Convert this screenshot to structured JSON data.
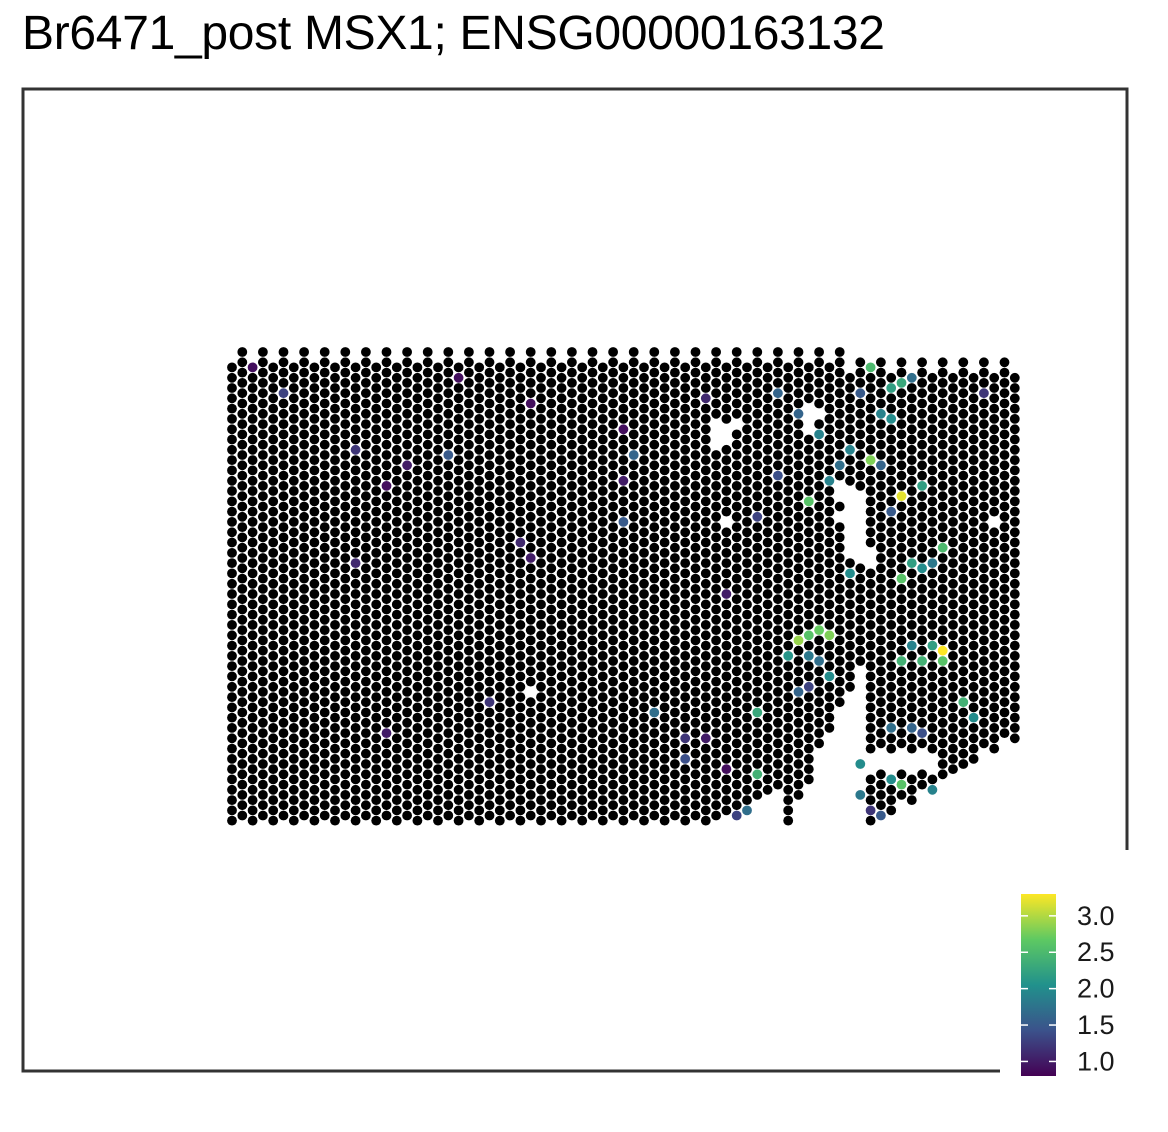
{
  "chart_data": {
    "type": "scatter",
    "title": "Br6471_post MSX1; ENSG00000163132",
    "background_spot_color": "#000000",
    "colorbar": {
      "palette": "viridis",
      "colors": [
        "#440154",
        "#3B528B",
        "#21918C",
        "#5EC962",
        "#FDE725"
      ],
      "min": 0.8,
      "max": 3.3,
      "ticks": [
        1.0,
        1.5,
        2.0,
        2.5,
        3.0
      ],
      "tick_labels": [
        "1.0",
        "1.5",
        "2.0",
        "2.5",
        "3.0"
      ]
    },
    "grid": {
      "columns": 77,
      "rows": 46,
      "layout": "hexagonal (odd columns offset by half a row)"
    },
    "holes": [
      [
        47,
        7
      ],
      [
        48,
        7
      ],
      [
        49,
        7
      ],
      [
        47,
        8
      ],
      [
        48,
        8
      ],
      [
        47,
        9
      ],
      [
        56,
        5
      ],
      [
        56,
        6
      ],
      [
        56,
        7
      ],
      [
        57,
        6
      ],
      [
        59,
        13
      ],
      [
        60,
        13
      ],
      [
        59,
        14
      ],
      [
        60,
        14
      ],
      [
        61,
        14
      ],
      [
        60,
        15
      ],
      [
        61,
        15
      ],
      [
        59,
        16
      ],
      [
        60,
        16
      ],
      [
        61,
        16
      ],
      [
        60,
        17
      ],
      [
        61,
        17
      ],
      [
        60,
        18
      ],
      [
        61,
        18
      ],
      [
        60,
        19
      ],
      [
        61,
        19
      ],
      [
        62,
        19
      ],
      [
        61,
        20
      ],
      [
        62,
        20
      ],
      [
        74,
        16
      ],
      [
        29,
        33
      ],
      [
        48,
        16
      ]
    ],
    "values": [
      {
        "x": 2,
        "y": 1,
        "v": 0.9
      },
      {
        "x": 5,
        "y": 4,
        "v": 1.3
      },
      {
        "x": 22,
        "y": 2,
        "v": 0.9
      },
      {
        "x": 29,
        "y": 5,
        "v": 0.9
      },
      {
        "x": 12,
        "y": 9,
        "v": 1.2
      },
      {
        "x": 17,
        "y": 11,
        "v": 1.0
      },
      {
        "x": 15,
        "y": 13,
        "v": 0.9
      },
      {
        "x": 21,
        "y": 10,
        "v": 1.5
      },
      {
        "x": 38,
        "y": 7,
        "v": 0.9
      },
      {
        "x": 46,
        "y": 4,
        "v": 1.1
      },
      {
        "x": 39,
        "y": 10,
        "v": 1.6
      },
      {
        "x": 38,
        "y": 12,
        "v": 1.0
      },
      {
        "x": 28,
        "y": 18,
        "v": 1.1
      },
      {
        "x": 29,
        "y": 20,
        "v": 1.0
      },
      {
        "x": 12,
        "y": 20,
        "v": 1.1
      },
      {
        "x": 38,
        "y": 16,
        "v": 1.5
      },
      {
        "x": 53,
        "y": 4,
        "v": 1.6
      },
      {
        "x": 55,
        "y": 6,
        "v": 1.6
      },
      {
        "x": 53,
        "y": 12,
        "v": 1.4
      },
      {
        "x": 51,
        "y": 16,
        "v": 1.3
      },
      {
        "x": 57,
        "y": 8,
        "v": 1.9
      },
      {
        "x": 56,
        "y": 14,
        "v": 2.6
      },
      {
        "x": 60,
        "y": 9,
        "v": 1.9
      },
      {
        "x": 61,
        "y": 4,
        "v": 1.5
      },
      {
        "x": 62,
        "y": 1,
        "v": 2.5
      },
      {
        "x": 62,
        "y": 10,
        "v": 2.8
      },
      {
        "x": 59,
        "y": 11,
        "v": 1.7
      },
      {
        "x": 63,
        "y": 6,
        "v": 1.9
      },
      {
        "x": 64,
        "y": 3,
        "v": 2.2
      },
      {
        "x": 65,
        "y": 3,
        "v": 2.3
      },
      {
        "x": 64,
        "y": 6,
        "v": 2.0
      },
      {
        "x": 63,
        "y": 11,
        "v": 1.6
      },
      {
        "x": 65,
        "y": 14,
        "v": 3.2
      },
      {
        "x": 67,
        "y": 13,
        "v": 2.2
      },
      {
        "x": 64,
        "y": 15,
        "v": 1.5
      },
      {
        "x": 66,
        "y": 2,
        "v": 1.7
      },
      {
        "x": 73,
        "y": 4,
        "v": 1.2
      },
      {
        "x": 58,
        "y": 12,
        "v": 1.9
      },
      {
        "x": 60,
        "y": 21,
        "v": 2.0
      },
      {
        "x": 48,
        "y": 23,
        "v": 1.0
      },
      {
        "x": 66,
        "y": 20,
        "v": 2.2
      },
      {
        "x": 67,
        "y": 21,
        "v": 2.0
      },
      {
        "x": 68,
        "y": 20,
        "v": 1.8
      },
      {
        "x": 69,
        "y": 19,
        "v": 2.5
      },
      {
        "x": 65,
        "y": 22,
        "v": 2.6
      },
      {
        "x": 56,
        "y": 27,
        "v": 2.6
      },
      {
        "x": 57,
        "y": 27,
        "v": 2.7
      },
      {
        "x": 58,
        "y": 27,
        "v": 2.8
      },
      {
        "x": 55,
        "y": 28,
        "v": 2.9
      },
      {
        "x": 54,
        "y": 29,
        "v": 2.1
      },
      {
        "x": 56,
        "y": 29,
        "v": 1.8
      },
      {
        "x": 57,
        "y": 30,
        "v": 1.7
      },
      {
        "x": 58,
        "y": 31,
        "v": 2.0
      },
      {
        "x": 56,
        "y": 32,
        "v": 1.3
      },
      {
        "x": 55,
        "y": 33,
        "v": 1.6
      },
      {
        "x": 66,
        "y": 28,
        "v": 1.9
      },
      {
        "x": 68,
        "y": 28,
        "v": 2.2
      },
      {
        "x": 69,
        "y": 29,
        "v": 3.3
      },
      {
        "x": 65,
        "y": 30,
        "v": 2.4
      },
      {
        "x": 67,
        "y": 30,
        "v": 2.4
      },
      {
        "x": 69,
        "y": 30,
        "v": 2.6
      },
      {
        "x": 71,
        "y": 34,
        "v": 2.4
      },
      {
        "x": 72,
        "y": 35,
        "v": 2.0
      },
      {
        "x": 64,
        "y": 36,
        "v": 1.7
      },
      {
        "x": 66,
        "y": 36,
        "v": 1.6
      },
      {
        "x": 67,
        "y": 37,
        "v": 1.4
      },
      {
        "x": 51,
        "y": 35,
        "v": 2.3
      },
      {
        "x": 41,
        "y": 35,
        "v": 1.7
      },
      {
        "x": 44,
        "y": 37,
        "v": 1.2
      },
      {
        "x": 46,
        "y": 37,
        "v": 1.0
      },
      {
        "x": 44,
        "y": 39,
        "v": 1.4
      },
      {
        "x": 48,
        "y": 40,
        "v": 0.9
      },
      {
        "x": 25,
        "y": 34,
        "v": 1.2
      },
      {
        "x": 15,
        "y": 37,
        "v": 1.0
      },
      {
        "x": 51,
        "y": 41,
        "v": 2.4
      },
      {
        "x": 50,
        "y": 44,
        "v": 1.7
      },
      {
        "x": 49,
        "y": 45,
        "v": 1.3
      },
      {
        "x": 61,
        "y": 40,
        "v": 2.0
      },
      {
        "x": 65,
        "y": 40,
        "v": 2.6
      },
      {
        "x": 66,
        "y": 40,
        "v": 3.2
      },
      {
        "x": 64,
        "y": 41,
        "v": 2.0
      },
      {
        "x": 61,
        "y": 43,
        "v": 1.8
      },
      {
        "x": 62,
        "y": 44,
        "v": 1.2
      },
      {
        "x": 63,
        "y": 45,
        "v": 1.5
      },
      {
        "x": 65,
        "y": 42,
        "v": 2.6
      },
      {
        "x": 68,
        "y": 42,
        "v": 1.9
      }
    ]
  }
}
